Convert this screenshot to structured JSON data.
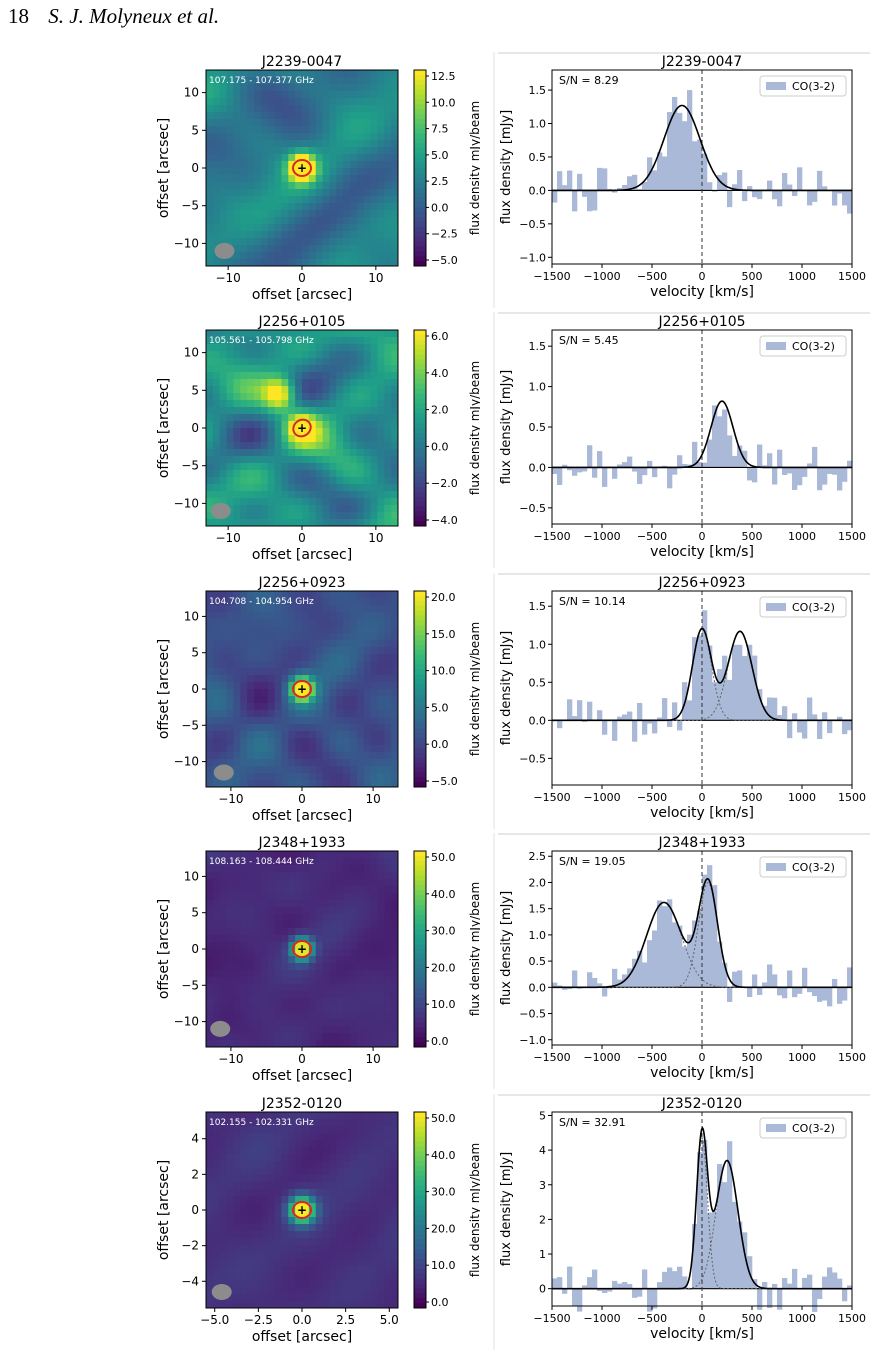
{
  "header": {
    "page_number": "18",
    "authors": "S. J. Molyneux et al."
  },
  "colors": {
    "hist": "#aab9d8",
    "fit": "#000000",
    "components": "#666666",
    "ellipse": "#d62728",
    "beam": "#8c8c8c"
  },
  "common": {
    "map_xlabel": "offset [arcsec]",
    "map_ylabel": "offset [arcsec]",
    "colorbar_label": "flux density mJy/beam",
    "spec_xlabel": "velocity [km/s]",
    "spec_ylabel": "flux density [mJy]",
    "legend_label": "CO(3-2)"
  },
  "panels": [
    {
      "name": "J2239-0047",
      "freq_range": "107.175 - 107.377 GHz",
      "map_ticks": {
        "x": [
          "−10",
          "0",
          "10"
        ],
        "y": [
          "10",
          "5",
          "0",
          "−5",
          "−10"
        ]
      },
      "colorbar_ticks": [
        "12.5",
        "10.0",
        "7.5",
        "5.0",
        "2.5",
        "0.0",
        "−2.5",
        "−5.0"
      ],
      "snr": "S/N = 8.29",
      "spec_yticks": [
        "1.5",
        "1.0",
        "0.5",
        "0.0",
        "−0.5",
        "−1.0"
      ],
      "spec_xticks": [
        "−1500",
        "−1000",
        "−500",
        "0",
        "500",
        "1000",
        "1500"
      ]
    },
    {
      "name": "J2256+0105",
      "freq_range": "105.561 - 105.798 GHz",
      "map_ticks": {
        "x": [
          "−10",
          "0",
          "10"
        ],
        "y": [
          "10",
          "5",
          "0",
          "−5",
          "−10"
        ]
      },
      "colorbar_ticks": [
        "6.0",
        "4.0",
        "2.0",
        "0.0",
        "−2.0",
        "−4.0"
      ],
      "snr": "S/N = 5.45",
      "spec_yticks": [
        "1.5",
        "1.0",
        "0.5",
        "0.0",
        "−0.5"
      ],
      "spec_xticks": [
        "−1500",
        "−1000",
        "−500",
        "0",
        "500",
        "1000",
        "1500"
      ]
    },
    {
      "name": "J2256+0923",
      "freq_range": "104.708 - 104.954 GHz",
      "map_ticks": {
        "x": [
          "−10",
          "0",
          "10"
        ],
        "y": [
          "10",
          "5",
          "0",
          "−5",
          "−10"
        ]
      },
      "colorbar_ticks": [
        "20.0",
        "15.0",
        "10.0",
        "5.0",
        "0.0",
        "−5.0"
      ],
      "snr": "S/N = 10.14",
      "spec_yticks": [
        "1.5",
        "1.0",
        "0.5",
        "0.0",
        "−0.5"
      ],
      "spec_xticks": [
        "−1500",
        "−1000",
        "−500",
        "0",
        "500",
        "1000",
        "1500"
      ]
    },
    {
      "name": "J2348+1933",
      "freq_range": "108.163 - 108.444 GHz",
      "map_ticks": {
        "x": [
          "−10",
          "0",
          "10"
        ],
        "y": [
          "10",
          "5",
          "0",
          "−5",
          "−10"
        ]
      },
      "colorbar_ticks": [
        "50.0",
        "40.0",
        "30.0",
        "20.0",
        "10.0",
        "0.0"
      ],
      "snr": "S/N = 19.05",
      "spec_yticks": [
        "2.5",
        "2.0",
        "1.5",
        "1.0",
        "0.5",
        "0.0",
        "−0.5",
        "−1.0"
      ],
      "spec_xticks": [
        "−1500",
        "−1000",
        "−500",
        "0",
        "500",
        "1000",
        "1500"
      ]
    },
    {
      "name": "J2352-0120",
      "freq_range": "102.155 - 102.331 GHz",
      "map_ticks": {
        "x": [
          "−5.0",
          "−2.5",
          "0.0",
          "2.5",
          "5.0"
        ],
        "y": [
          "4",
          "2",
          "0",
          "−2",
          "−4"
        ]
      },
      "colorbar_ticks": [
        "50.0",
        "40.0",
        "30.0",
        "20.0",
        "10.0",
        "0.0"
      ],
      "snr": "S/N = 32.91",
      "spec_yticks": [
        "5",
        "4",
        "3",
        "2",
        "1",
        "0"
      ],
      "spec_xticks": [
        "−1500",
        "−1000",
        "−500",
        "0",
        "500",
        "1000",
        "1500"
      ]
    }
  ],
  "chart_data": [
    {
      "type": "histogram+line",
      "title": "J2239-0047",
      "xlabel": "velocity [km/s]",
      "ylabel": "flux density [mJy]",
      "xlim": [
        -1500,
        1500
      ],
      "ylim": [
        -1.1,
        1.8
      ],
      "legend": "CO(3-2)",
      "legend_position": "top-right",
      "annotation": "S/N = 8.29",
      "fit": {
        "components": [
          {
            "center": -200,
            "amplitude": 1.27,
            "sigma": 180
          }
        ]
      },
      "systemic_velocity": 0
    },
    {
      "type": "histogram+line",
      "title": "J2256+0105",
      "xlabel": "velocity [km/s]",
      "ylabel": "flux density [mJy]",
      "xlim": [
        -1500,
        1500
      ],
      "ylim": [
        -0.7,
        1.7
      ],
      "legend": "CO(3-2)",
      "legend_position": "top-right",
      "annotation": "S/N = 5.45",
      "fit": {
        "components": [
          {
            "center": 200,
            "amplitude": 0.82,
            "sigma": 110
          }
        ]
      },
      "systemic_velocity": 0
    },
    {
      "type": "histogram+line",
      "title": "J2256+0923",
      "xlabel": "velocity [km/s]",
      "ylabel": "flux density [mJy]",
      "xlim": [
        -1500,
        1500
      ],
      "ylim": [
        -0.85,
        1.7
      ],
      "legend": "CO(3-2)",
      "legend_position": "top-right",
      "annotation": "S/N = 10.14",
      "fit": {
        "components": [
          {
            "center": 0,
            "amplitude": 1.2,
            "sigma": 95
          },
          {
            "center": 380,
            "amplitude": 1.17,
            "sigma": 120
          }
        ]
      },
      "systemic_velocity": 0
    },
    {
      "type": "histogram+line",
      "title": "J2348+1933",
      "xlabel": "velocity [km/s]",
      "ylabel": "flux density [mJy]",
      "xlim": [
        -1500,
        1500
      ],
      "ylim": [
        -1.1,
        2.6
      ],
      "legend": "CO(3-2)",
      "legend_position": "top-right",
      "annotation": "S/N = 19.05",
      "fit": {
        "components": [
          {
            "center": -380,
            "amplitude": 1.62,
            "sigma": 175
          },
          {
            "center": 60,
            "amplitude": 2.0,
            "sigma": 95
          }
        ]
      },
      "systemic_velocity": 0
    },
    {
      "type": "histogram+line",
      "title": "J2352-0120",
      "xlabel": "velocity [km/s]",
      "ylabel": "flux density [mJy]",
      "xlim": [
        -1500,
        1500
      ],
      "ylim": [
        -0.5,
        5.1
      ],
      "legend": "CO(3-2)",
      "legend_position": "top-right",
      "annotation": "S/N = 32.91",
      "fit": {
        "components": [
          {
            "center": 0,
            "amplitude": 4.35,
            "sigma": 55
          },
          {
            "center": 250,
            "amplitude": 3.7,
            "sigma": 110
          }
        ]
      },
      "systemic_velocity": 0
    }
  ]
}
